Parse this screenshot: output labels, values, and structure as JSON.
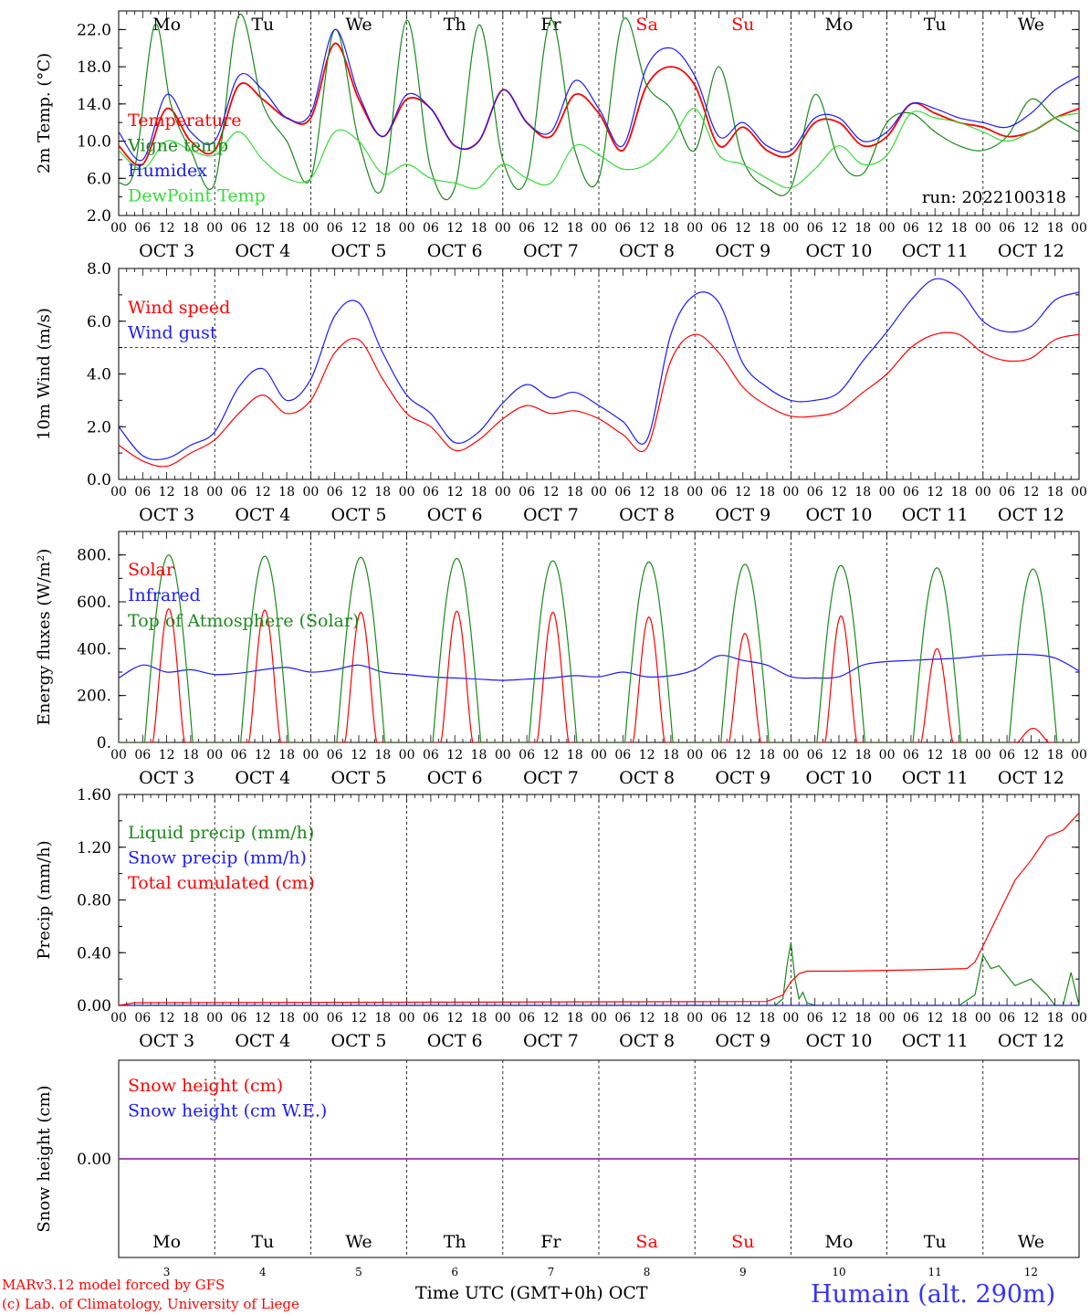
{
  "colors": {
    "red": "#ff0000",
    "green": "#1a8a1a",
    "lightgreen": "#33dd33",
    "blue": "#1a1aff",
    "purple": "#9933aa",
    "weekend": "#ff0000"
  },
  "day_abbrevs": [
    "Mo",
    "Tu",
    "We",
    "Th",
    "Fr",
    "Sa",
    "Su",
    "Mo",
    "Tu",
    "We"
  ],
  "weekend_days": [
    5,
    6
  ],
  "date_labels": [
    "OCT  3",
    "OCT  4",
    "OCT  5",
    "OCT  6",
    "OCT  7",
    "OCT  8",
    "OCT  9",
    "OCT 10",
    "OCT 11",
    "OCT 12"
  ],
  "hour_ticks": [
    "00",
    "06",
    "12",
    "18"
  ],
  "final_hour_tick": "00",
  "day_numbers": [
    "3",
    "4",
    "5",
    "6",
    "7",
    "8",
    "9",
    "10",
    "11",
    "12"
  ],
  "x_axis_title": "Time UTC (GMT+0h)",
  "x_axis_month": "OCT",
  "credit_line1": "MARv3.12 model forced by GFS",
  "credit_line2": "(c) Lab. of Climatology, University of Liege",
  "station": "Humain (alt. 290m)",
  "chart_data": [
    {
      "type": "line",
      "ylabel": "2m Temp. (°C)",
      "ylim": [
        2.0,
        24.0
      ],
      "yticks": [
        2.0,
        6.0,
        10.0,
        14.0,
        18.0,
        22.0
      ],
      "ytick_labels": [
        "2.0",
        "6.0",
        "10.0",
        "14.0",
        "18.0",
        "22.0"
      ],
      "annotation": "run: 2022100318",
      "x_unit": "hours since Oct 3 00 UTC",
      "series": [
        {
          "name": "Temperature",
          "color": "#ff0000",
          "x": [
            0,
            6,
            12,
            18,
            24,
            30,
            36,
            42,
            48,
            54,
            60,
            66,
            72,
            78,
            84,
            90,
            96,
            102,
            108,
            114,
            120,
            126,
            132,
            138,
            144,
            150,
            156,
            162,
            168,
            174,
            180,
            186,
            192,
            198,
            204,
            210,
            216,
            222,
            228,
            234,
            240
          ],
          "y": [
            9.5,
            7.5,
            13.5,
            10.0,
            9.0,
            16.0,
            14.5,
            12.5,
            12.5,
            20.5,
            14.5,
            10.5,
            14.5,
            13.5,
            9.5,
            10.0,
            15.5,
            12.0,
            10.5,
            15.0,
            13.0,
            9.0,
            16.0,
            18.0,
            16.0,
            9.5,
            11.5,
            9.0,
            8.5,
            12.0,
            12.0,
            9.5,
            10.5,
            14.0,
            13.0,
            12.0,
            11.5,
            10.5,
            11.0,
            12.5,
            13.5
          ]
        },
        {
          "name": "Vigne temp",
          "color": "#1a8a1a",
          "x": [
            0,
            4,
            9,
            13,
            18,
            24,
            30,
            36,
            42,
            48,
            54,
            60,
            66,
            72,
            78,
            84,
            90,
            96,
            102,
            108,
            114,
            120,
            126,
            132,
            138,
            144,
            150,
            156,
            162,
            168,
            174,
            180,
            186,
            192,
            198,
            204,
            210,
            216,
            222,
            228,
            234,
            240
          ],
          "y": [
            5.5,
            7.0,
            22.5,
            14.0,
            9.0,
            5.5,
            23.5,
            14.0,
            10.0,
            6.0,
            22.0,
            10.0,
            5.0,
            23.0,
            7.0,
            5.0,
            22.5,
            8.0,
            6.0,
            23.0,
            9.0,
            6.0,
            23.0,
            16.0,
            13.5,
            9.0,
            18.0,
            8.0,
            5.0,
            5.0,
            15.0,
            8.0,
            6.5,
            12.0,
            13.0,
            11.0,
            9.5,
            9.0,
            10.5,
            14.5,
            12.5,
            11.0
          ]
        },
        {
          "name": "Humidex",
          "color": "#1a1aff",
          "x": [
            0,
            6,
            12,
            18,
            24,
            30,
            36,
            42,
            48,
            54,
            60,
            66,
            72,
            78,
            84,
            90,
            96,
            102,
            108,
            114,
            120,
            126,
            132,
            138,
            144,
            150,
            156,
            162,
            168,
            174,
            180,
            186,
            192,
            198,
            204,
            210,
            216,
            222,
            228,
            234,
            240
          ],
          "y": [
            11.0,
            8.0,
            15.0,
            11.0,
            10.0,
            17.0,
            15.5,
            12.5,
            13.0,
            22.0,
            15.0,
            10.5,
            15.0,
            13.5,
            9.5,
            10.0,
            15.5,
            12.0,
            11.0,
            16.5,
            13.5,
            9.5,
            18.0,
            20.0,
            17.0,
            10.5,
            12.0,
            9.5,
            9.0,
            12.5,
            12.5,
            10.0,
            11.0,
            14.0,
            13.5,
            12.5,
            12.0,
            11.5,
            13.0,
            15.5,
            17.0
          ]
        },
        {
          "name": "DewPoint Temp",
          "color": "#33dd33",
          "x": [
            0,
            6,
            12,
            18,
            24,
            30,
            36,
            42,
            48,
            54,
            60,
            66,
            72,
            78,
            84,
            90,
            96,
            102,
            108,
            114,
            120,
            126,
            132,
            138,
            144,
            150,
            156,
            162,
            168,
            174,
            180,
            186,
            192,
            198,
            204,
            210,
            216,
            222,
            228,
            234,
            240
          ],
          "y": [
            9.0,
            7.0,
            10.0,
            9.0,
            8.5,
            11.0,
            8.0,
            6.0,
            6.0,
            11.0,
            10.0,
            6.5,
            7.5,
            6.0,
            5.5,
            5.0,
            7.5,
            6.0,
            5.5,
            9.5,
            8.5,
            7.0,
            7.5,
            10.0,
            13.5,
            8.5,
            7.5,
            6.0,
            5.0,
            7.0,
            9.5,
            7.5,
            8.5,
            13.0,
            12.5,
            12.0,
            11.0,
            10.0,
            11.0,
            12.5,
            13.0
          ]
        }
      ]
    },
    {
      "type": "line",
      "ylabel": "10m Wind (m/s)",
      "ylim": [
        0.0,
        8.0
      ],
      "yticks": [
        0.0,
        2.0,
        4.0,
        6.0,
        8.0
      ],
      "ytick_labels": [
        "0.0",
        "2.0",
        "4.0",
        "6.0",
        "8.0"
      ],
      "reference_line": 5.0,
      "x_unit": "hours since Oct 3 00 UTC",
      "series": [
        {
          "name": "Wind speed",
          "color": "#ff0000",
          "x": [
            0,
            6,
            12,
            18,
            24,
            30,
            36,
            42,
            48,
            54,
            60,
            66,
            72,
            78,
            84,
            90,
            96,
            102,
            108,
            114,
            120,
            126,
            132,
            138,
            144,
            150,
            156,
            162,
            168,
            174,
            180,
            186,
            192,
            198,
            204,
            210,
            216,
            222,
            228,
            234,
            240
          ],
          "y": [
            1.3,
            0.7,
            0.5,
            1.0,
            1.5,
            2.5,
            3.2,
            2.5,
            3.0,
            4.8,
            5.3,
            3.8,
            2.5,
            2.0,
            1.1,
            1.5,
            2.3,
            2.8,
            2.5,
            2.6,
            2.3,
            1.7,
            1.2,
            4.5,
            5.5,
            4.8,
            3.5,
            2.8,
            2.4,
            2.4,
            2.6,
            3.3,
            4.0,
            5.0,
            5.5,
            5.5,
            4.8,
            4.5,
            4.6,
            5.3,
            5.5
          ]
        },
        {
          "name": "Wind gust",
          "color": "#1a1aff",
          "x": [
            0,
            6,
            12,
            18,
            24,
            30,
            36,
            42,
            48,
            54,
            60,
            66,
            72,
            78,
            84,
            90,
            96,
            102,
            108,
            114,
            120,
            126,
            132,
            138,
            144,
            150,
            156,
            162,
            168,
            174,
            180,
            186,
            192,
            198,
            204,
            210,
            216,
            222,
            228,
            234,
            240
          ],
          "y": [
            2.0,
            0.9,
            0.8,
            1.3,
            1.8,
            3.5,
            4.2,
            3.0,
            3.8,
            6.2,
            6.7,
            4.8,
            3.2,
            2.5,
            1.4,
            1.8,
            2.9,
            3.6,
            3.1,
            3.3,
            2.8,
            2.2,
            1.5,
            5.5,
            7.0,
            6.7,
            4.4,
            3.5,
            3.0,
            3.0,
            3.3,
            4.5,
            5.6,
            6.8,
            7.6,
            7.2,
            6.0,
            5.6,
            5.8,
            6.8,
            7.1
          ]
        }
      ]
    },
    {
      "type": "line",
      "ylabel": "Energy fluxes (W/m²)",
      "ylim": [
        0,
        900
      ],
      "yticks": [
        0,
        200,
        400,
        600,
        800
      ],
      "ytick_labels": [
        "0.",
        "200.",
        "400.",
        "600.",
        "800."
      ],
      "x_unit": "hours since Oct 3 00 UTC",
      "series": [
        {
          "name": "Solar",
          "color": "#ff0000",
          "daily_peak_wm2": [
            570,
            565,
            555,
            560,
            555,
            535,
            465,
            540,
            400,
            60
          ]
        },
        {
          "name": "Infrared",
          "color": "#1a1aff",
          "x": [
            0,
            6,
            12,
            18,
            24,
            30,
            36,
            42,
            48,
            54,
            60,
            66,
            72,
            78,
            84,
            90,
            96,
            102,
            108,
            114,
            120,
            126,
            132,
            138,
            144,
            150,
            156,
            162,
            168,
            174,
            180,
            186,
            192,
            198,
            204,
            210,
            216,
            222,
            228,
            234,
            240
          ],
          "y": [
            275,
            330,
            300,
            310,
            290,
            295,
            310,
            320,
            300,
            310,
            330,
            300,
            290,
            280,
            275,
            270,
            265,
            270,
            275,
            285,
            280,
            300,
            280,
            285,
            310,
            370,
            350,
            330,
            280,
            275,
            280,
            330,
            345,
            350,
            355,
            360,
            370,
            375,
            375,
            360,
            305
          ]
        },
        {
          "name": "Top of Atmosphere (Solar)",
          "color": "#1a8a1a",
          "daily_peak_wm2": [
            800,
            795,
            790,
            785,
            775,
            770,
            760,
            755,
            745,
            740
          ]
        }
      ]
    },
    {
      "type": "line",
      "ylabel": "Precip (mm/h)",
      "ylim": [
        0.0,
        1.6
      ],
      "yticks": [
        0.0,
        0.4,
        0.8,
        1.2,
        1.6
      ],
      "ytick_labels": [
        "0.00",
        "0.40",
        "0.80",
        "1.20",
        "1.60"
      ],
      "x_unit": "hours since Oct 3 00 UTC",
      "series": [
        {
          "name": "Liquid precip (mm/h)",
          "color": "#1a8a1a",
          "x": [
            0,
            164,
            166,
            167,
            168,
            169,
            170,
            171,
            172,
            174,
            190,
            210,
            214,
            216,
            218,
            220,
            224,
            228,
            232,
            234,
            236,
            238,
            240
          ],
          "y": [
            0,
            0,
            0.05,
            0.3,
            0.48,
            0.2,
            0.05,
            0.1,
            0.02,
            0,
            0,
            0,
            0.08,
            0.38,
            0.28,
            0.3,
            0.15,
            0.2,
            0.08,
            0,
            0,
            0.25,
            0
          ]
        },
        {
          "name": "Snow precip (mm/h)",
          "color": "#1a1aff",
          "x": [
            0,
            240
          ],
          "y": [
            0,
            0
          ]
        },
        {
          "name": "Total cumulated (cm)",
          "color": "#ff0000",
          "x": [
            0,
            4,
            162,
            166,
            168,
            170,
            172,
            180,
            200,
            212,
            214,
            216,
            220,
            224,
            228,
            232,
            236,
            240
          ],
          "y": [
            0,
            0.02,
            0.03,
            0.08,
            0.18,
            0.24,
            0.26,
            0.26,
            0.27,
            0.28,
            0.33,
            0.45,
            0.7,
            0.95,
            1.1,
            1.28,
            1.33,
            1.46
          ]
        }
      ]
    },
    {
      "type": "line",
      "ylabel": "Snow height (cm)",
      "ylim": [
        -1.0,
        1.0
      ],
      "yticks": [
        0.0
      ],
      "ytick_labels": [
        "0.00"
      ],
      "x_unit": "hours since Oct 3 00 UTC",
      "series": [
        {
          "name": "Snow height (cm)",
          "color": "#ff0000",
          "x": [
            0,
            240
          ],
          "y": [
            0,
            0
          ]
        },
        {
          "name": "Snow height (cm W.E.)",
          "color": "#1a1aff",
          "x": [
            0,
            240
          ],
          "y": [
            0,
            0
          ]
        }
      ]
    }
  ]
}
